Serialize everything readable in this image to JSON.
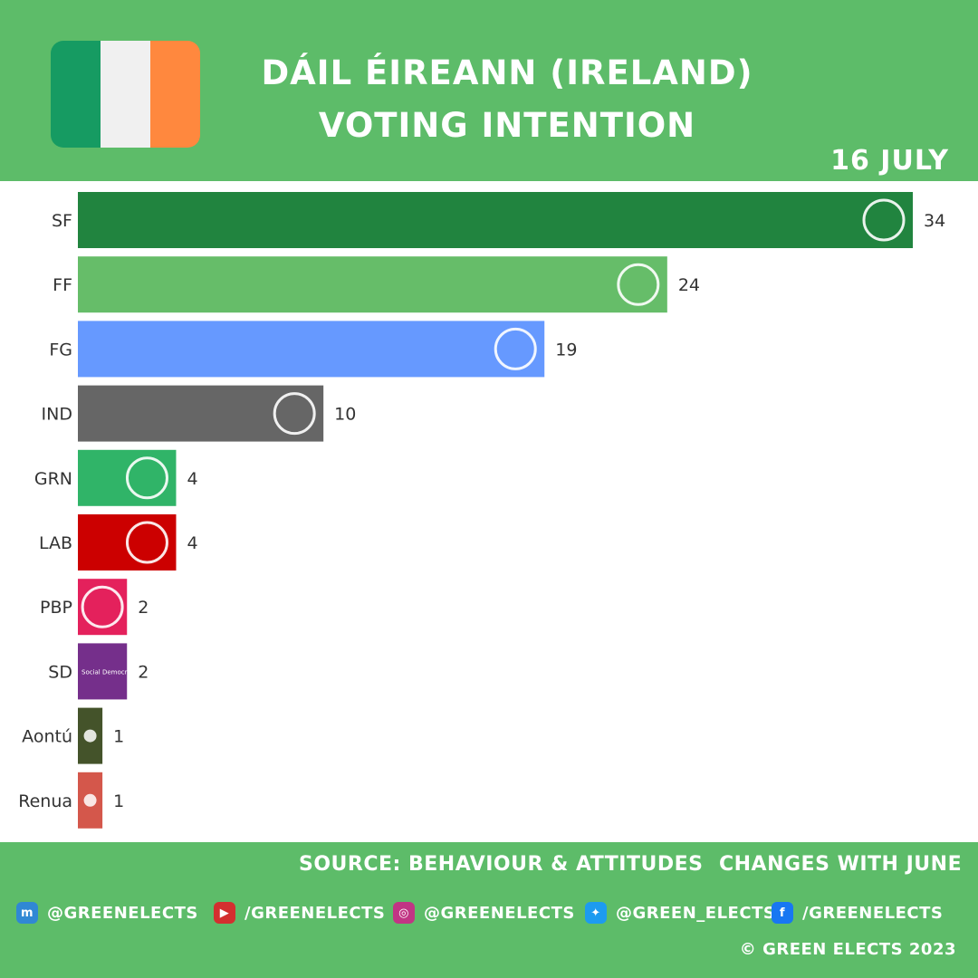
{
  "header": {
    "title_line1": "DÁIL ÉIREANN (IRELAND)",
    "title_line2": "VOTING INTENTION",
    "date": "16 JULY",
    "flag_colors": [
      "#169b62",
      "#f0f0f0",
      "#ff883e"
    ]
  },
  "chart_data": {
    "type": "bar",
    "orientation": "horizontal",
    "title": "",
    "xlabel": "",
    "ylabel": "",
    "xlim": [
      0,
      34
    ],
    "grid": false,
    "categories": [
      "SF",
      "FF",
      "FG",
      "IND",
      "GRN",
      "LAB",
      "PBP",
      "SD",
      "Aontú",
      "Renua"
    ],
    "values": [
      34,
      24,
      19,
      10,
      4,
      4,
      2,
      2,
      1,
      1
    ],
    "colors": [
      "#21843f",
      "#66bd69",
      "#6699ff",
      "#666666",
      "#30b468",
      "#cc0000",
      "#e4215c",
      "#752f8b",
      "#44532a",
      "#d4574b"
    ],
    "logo_labels": [
      "",
      "",
      "",
      "",
      "",
      "",
      "",
      "Social Democrats",
      "",
      ""
    ]
  },
  "footer": {
    "source": "SOURCE: BEHAVIOUR & ATTITUDES",
    "changes": "CHANGES WITH JUNE",
    "socials": [
      {
        "icon": "mastodon-icon",
        "text": "@GREENELECTS",
        "color": "#3088d4",
        "glyph": "m"
      },
      {
        "icon": "youtube-icon",
        "text": "/GREENELECTS",
        "color": "#d32f2f",
        "glyph": "▶"
      },
      {
        "icon": "instagram-icon",
        "text": "@GREENELECTS",
        "color": "#c13584",
        "glyph": "◎"
      },
      {
        "icon": "twitter-icon",
        "text": "@GREEN_ELECTS",
        "color": "#1d9bf0",
        "glyph": "✦"
      },
      {
        "icon": "facebook-icon",
        "text": "/GREENELECTS",
        "color": "#1877f2",
        "glyph": "f"
      }
    ],
    "copyright": "© GREEN ELECTS 2023"
  }
}
